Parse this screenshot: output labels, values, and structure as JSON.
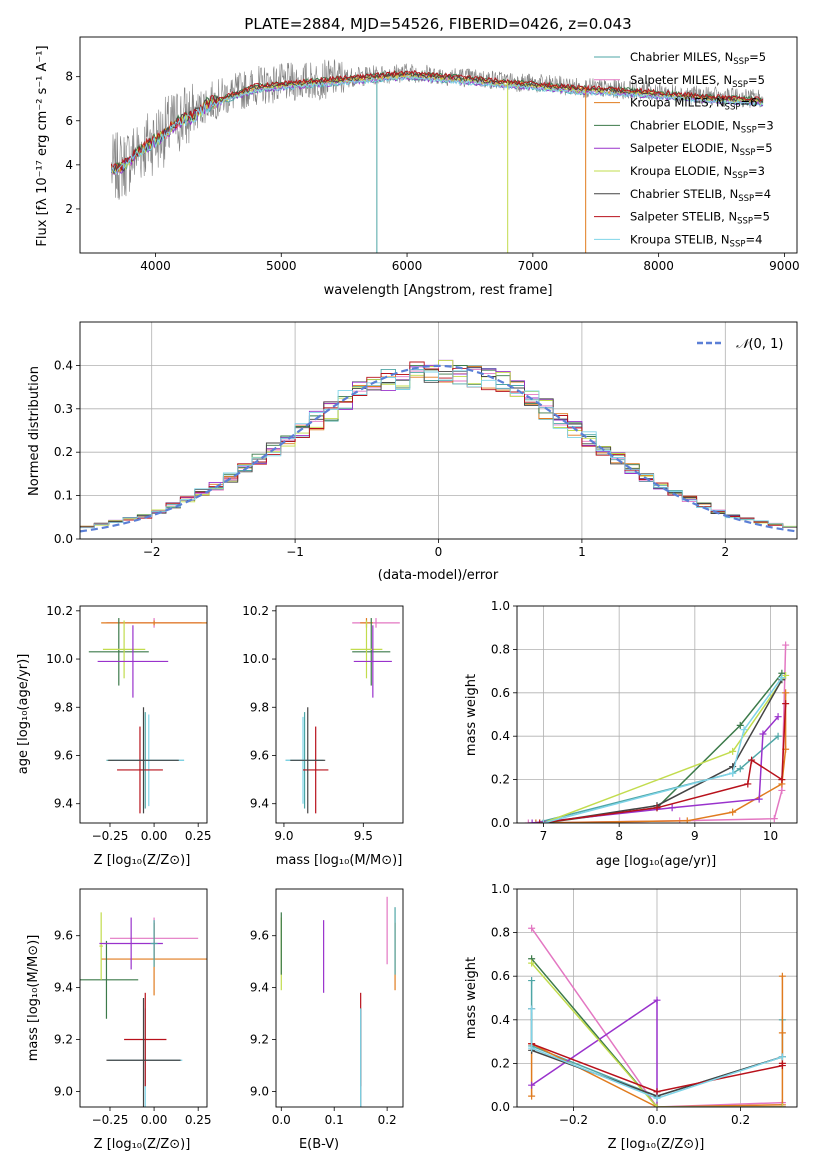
{
  "figure_title": "PLATE=2884, MJD=54526, FIBERID=0426, z=0.043",
  "model_colors": [
    "#4ea6a6",
    "#e377c2",
    "#e07b1e",
    "#3c7a4a",
    "#9932cc",
    "#c2dc4d",
    "#444444",
    "#b8111b",
    "#7fd4e8"
  ],
  "chart_data": [
    {
      "id": "spectrum",
      "type": "line",
      "xlabel": "wavelength [Angstrom, rest frame]",
      "ylabel": "Flux [fλ 10⁻¹⁷ erg cm⁻² s⁻¹ A⁻¹]",
      "xlim": [
        3400,
        9100
      ],
      "ylim": [
        0,
        9.8
      ],
      "xticks": [
        4000,
        5000,
        6000,
        7000,
        8000,
        9000
      ],
      "yticks": [
        2,
        4,
        6,
        8
      ],
      "legend_position": "right",
      "data_color": "#808080",
      "continuum_points": [
        [
          3650,
          3.8
        ],
        [
          3750,
          4.0
        ],
        [
          3850,
          4.6
        ],
        [
          4000,
          5.2
        ],
        [
          4100,
          5.6
        ],
        [
          4200,
          6.1
        ],
        [
          4300,
          6.3
        ],
        [
          4400,
          6.8
        ],
        [
          4600,
          7.2
        ],
        [
          4800,
          7.6
        ],
        [
          5000,
          7.7
        ],
        [
          5200,
          7.8
        ],
        [
          5400,
          7.9
        ],
        [
          5600,
          8.0
        ],
        [
          5800,
          8.1
        ],
        [
          6000,
          8.2
        ],
        [
          6200,
          8.1
        ],
        [
          6400,
          8.0
        ],
        [
          6600,
          7.9
        ],
        [
          6800,
          7.8
        ],
        [
          7000,
          7.7
        ],
        [
          7200,
          7.6
        ],
        [
          7400,
          7.5
        ],
        [
          7600,
          7.45
        ],
        [
          7800,
          7.4
        ],
        [
          8000,
          7.3
        ],
        [
          8200,
          7.2
        ],
        [
          8400,
          7.1
        ],
        [
          8600,
          7.05
        ],
        [
          8800,
          7.0
        ],
        [
          8830,
          6.9
        ]
      ],
      "legend": [
        {
          "main": "Chabrier MILES, N",
          "sub": "SSP",
          "tail": "=5"
        },
        {
          "main": "Salpeter MILES, N",
          "sub": "SSP",
          "tail": "=5"
        },
        {
          "main": "Kroupa MILES, N",
          "sub": "SSP",
          "tail": "=6"
        },
        {
          "main": "Chabrier ELODIE, N",
          "sub": "SSP",
          "tail": "=3"
        },
        {
          "main": "Salpeter ELODIE, N",
          "sub": "SSP",
          "tail": "=5"
        },
        {
          "main": "Kroupa ELODIE, N",
          "sub": "SSP",
          "tail": "=3"
        },
        {
          "main": "Chabrier STELIB, N",
          "sub": "SSP",
          "tail": "=4"
        },
        {
          "main": "Salpeter STELIB, N",
          "sub": "SSP",
          "tail": "=5"
        },
        {
          "main": "Kroupa STELIB, N",
          "sub": "SSP",
          "tail": "=4"
        }
      ]
    },
    {
      "id": "residuals",
      "type": "line",
      "xlabel": "(data-model)/error",
      "ylabel": "Normed distribution",
      "xlim": [
        -2.5,
        2.5
      ],
      "ylim": [
        0,
        0.5
      ],
      "xticks": [
        -2,
        -1,
        0,
        1,
        2
      ],
      "xtick_labels": [
        "−2",
        "−1",
        "0",
        "1",
        "2"
      ],
      "yticks": [
        0.0,
        0.1,
        0.2,
        0.3,
        0.4
      ],
      "ytick_labels": [
        "0.0",
        "0.1",
        "0.2",
        "0.3",
        "0.4"
      ],
      "grid": true,
      "legend_position": "top-right",
      "reference_curve": {
        "name": "N(0, 1)",
        "type": "gaussian",
        "mean": 0,
        "sigma": 1,
        "color": "#5b7fd6"
      },
      "histogram_bin_width": 0.1,
      "histogram_envelope": [
        [
          -2.5,
          0.025
        ],
        [
          -2.0,
          0.055
        ],
        [
          -1.5,
          0.13
        ],
        [
          -1.0,
          0.24
        ],
        [
          -0.5,
          0.35
        ],
        [
          0.0,
          0.39
        ],
        [
          0.5,
          0.36
        ],
        [
          1.0,
          0.24
        ],
        [
          1.5,
          0.13
        ],
        [
          2.0,
          0.055
        ],
        [
          2.5,
          0.025
        ]
      ]
    },
    {
      "id": "age_vs_Z",
      "type": "scatter",
      "xlabel": "Z [log₁₀(Z/Z⊙)]",
      "ylabel": "age  [log₁₀(age/yr)]",
      "xlim": [
        -0.42,
        0.3
      ],
      "ylim": [
        9.32,
        10.22
      ],
      "xticks": [
        -0.25,
        0.0,
        0.25
      ],
      "xtick_labels": [
        "−0.25",
        "0.00",
        "0.25"
      ],
      "yticks": [
        9.4,
        9.6,
        9.8,
        10.0,
        10.2
      ],
      "ytick_labels": [
        "9.4",
        "9.6",
        "9.8",
        "10.0",
        "10.2"
      ],
      "errorbars": [
        {
          "model": 1,
          "x": 0.0,
          "y": 10.15,
          "xerr": 0.27,
          "yerr": 0.02
        },
        {
          "model": 2,
          "x": 0.0,
          "y": 10.15,
          "xerr": 0.3,
          "yerr": 0.01
        },
        {
          "model": 3,
          "x": -0.2,
          "y": 10.03,
          "xerr": 0.17,
          "yerr": 0.14
        },
        {
          "model": 5,
          "x": -0.17,
          "y": 10.04,
          "xerr": 0.12,
          "yerr": 0.12
        },
        {
          "model": 4,
          "x": -0.12,
          "y": 9.99,
          "xerr": 0.2,
          "yerr": 0.15
        },
        {
          "model": 0,
          "x": -0.05,
          "y": 9.58,
          "xerr": 0.22,
          "yerr": 0.2
        },
        {
          "model": 8,
          "x": -0.03,
          "y": 9.58,
          "xerr": 0.2,
          "yerr": 0.19
        },
        {
          "model": 7,
          "x": -0.08,
          "y": 9.54,
          "xerr": 0.13,
          "yerr": 0.18
        },
        {
          "model": 6,
          "x": -0.06,
          "y": 9.58,
          "xerr": 0.2,
          "yerr": 0.22
        }
      ]
    },
    {
      "id": "age_vs_mass",
      "type": "scatter",
      "xlabel": "mass [log₁₀(M/M⊙)]",
      "xlim": [
        8.95,
        9.75
      ],
      "ylim": [
        9.32,
        10.22
      ],
      "xticks": [
        9.0,
        9.5
      ],
      "xtick_labels": [
        "9.0",
        "9.5"
      ],
      "yticks": [
        9.4,
        9.6,
        9.8,
        10.0,
        10.2
      ],
      "ytick_labels": [
        "9.4",
        "9.6",
        "9.8",
        "10.0",
        "10.2"
      ],
      "errorbars": [
        {
          "model": 1,
          "x": 9.58,
          "y": 10.15,
          "xerr": 0.15,
          "yerr": 0.02
        },
        {
          "model": 2,
          "x": 9.52,
          "y": 10.15,
          "xerr": 0.04,
          "yerr": 0.02
        },
        {
          "model": 3,
          "x": 9.55,
          "y": 10.03,
          "xerr": 0.12,
          "yerr": 0.14
        },
        {
          "model": 5,
          "x": 9.52,
          "y": 10.04,
          "xerr": 0.1,
          "yerr": 0.12
        },
        {
          "model": 4,
          "x": 9.56,
          "y": 9.99,
          "xerr": 0.12,
          "yerr": 0.15
        },
        {
          "model": 0,
          "x": 9.13,
          "y": 9.58,
          "xerr": 0.12,
          "yerr": 0.2
        },
        {
          "model": 8,
          "x": 9.12,
          "y": 9.58,
          "xerr": 0.11,
          "yerr": 0.18
        },
        {
          "model": 7,
          "x": 9.2,
          "y": 9.54,
          "xerr": 0.08,
          "yerr": 0.18
        },
        {
          "model": 6,
          "x": 9.15,
          "y": 9.58,
          "xerr": 0.11,
          "yerr": 0.22
        }
      ]
    },
    {
      "id": "weight_vs_age",
      "type": "line",
      "xlabel": "age  [log₁₀(age/yr)]",
      "ylabel": "mass weight",
      "xlim": [
        6.65,
        10.35
      ],
      "ylim": [
        0,
        1.0
      ],
      "xticks": [
        7,
        8,
        9,
        10
      ],
      "yticks": [
        0.0,
        0.2,
        0.4,
        0.6,
        0.8,
        1.0
      ],
      "ytick_labels": [
        "0.0",
        "0.2",
        "0.4",
        "0.6",
        "0.8",
        "1.0"
      ],
      "grid": true,
      "series": [
        {
          "model": 0,
          "x": [
            6.9,
            9.5,
            9.6,
            10.1
          ],
          "y": [
            0.0,
            0.23,
            0.25,
            0.4
          ]
        },
        {
          "model": 1,
          "x": [
            6.8,
            8.8,
            10.05,
            10.15,
            10.2
          ],
          "y": [
            0.0,
            0.01,
            0.02,
            0.15,
            0.82
          ]
        },
        {
          "model": 2,
          "x": [
            6.9,
            8.9,
            9.5,
            10.15,
            10.2,
            10.2
          ],
          "y": [
            0.0,
            0.01,
            0.05,
            0.18,
            0.34,
            0.6
          ]
        },
        {
          "model": 3,
          "x": [
            7.0,
            8.5,
            9.6,
            10.15
          ],
          "y": [
            0.0,
            0.07,
            0.45,
            0.69
          ]
        },
        {
          "model": 4,
          "x": [
            6.85,
            8.7,
            9.85,
            9.9,
            10.1
          ],
          "y": [
            0.0,
            0.07,
            0.11,
            0.41,
            0.49
          ]
        },
        {
          "model": 5,
          "x": [
            7.0,
            9.5,
            10.2
          ],
          "y": [
            0.0,
            0.33,
            0.68
          ]
        },
        {
          "model": 6,
          "x": [
            7.0,
            8.5,
            9.5,
            10.15
          ],
          "y": [
            0.0,
            0.08,
            0.26,
            0.66
          ]
        },
        {
          "model": 7,
          "x": [
            6.95,
            8.5,
            9.7,
            9.75,
            10.15,
            10.2
          ],
          "y": [
            0.0,
            0.07,
            0.18,
            0.29,
            0.2,
            0.55
          ]
        },
        {
          "model": 8,
          "x": [
            7.0,
            9.5,
            9.65,
            10.15
          ],
          "y": [
            0.0,
            0.23,
            0.43,
            0.67
          ]
        }
      ]
    },
    {
      "id": "mass_vs_Z",
      "type": "scatter",
      "xlabel": "Z [log₁₀(Z/Z⊙)]",
      "ylabel": "mass [log₁₀(M/M⊙)]",
      "xlim": [
        -0.42,
        0.3
      ],
      "ylim": [
        8.94,
        9.78
      ],
      "xticks": [
        -0.25,
        0.0,
        0.25
      ],
      "xtick_labels": [
        "−0.25",
        "0.00",
        "0.25"
      ],
      "yticks": [
        9.0,
        9.2,
        9.4,
        9.6
      ],
      "ytick_labels": [
        "9.0",
        "9.2",
        "9.4",
        "9.6"
      ],
      "errorbars": [
        {
          "model": 1,
          "x": 0.0,
          "y": 9.59,
          "xerr": 0.25,
          "yerr": 0.08
        },
        {
          "model": 2,
          "x": 0.0,
          "y": 9.51,
          "xerr": 0.3,
          "yerr": 0.14
        },
        {
          "model": 3,
          "x": -0.27,
          "y": 9.43,
          "xerr": 0.18,
          "yerr": 0.15
        },
        {
          "model": 5,
          "x": -0.3,
          "y": 9.56,
          "xerr": 0.01,
          "yerr": 0.13
        },
        {
          "model": 4,
          "x": -0.13,
          "y": 9.57,
          "xerr": 0.18,
          "yerr": 0.1
        },
        {
          "model": 0,
          "x": 0.0,
          "y": 9.57,
          "xerr": 0.02,
          "yerr": 0.09
        },
        {
          "model": 8,
          "x": -0.05,
          "y": 9.12,
          "xerr": 0.21,
          "yerr": 0.2
        },
        {
          "model": 7,
          "x": -0.05,
          "y": 9.2,
          "xerr": 0.12,
          "yerr": 0.18
        },
        {
          "model": 6,
          "x": -0.06,
          "y": 9.12,
          "xerr": 0.21,
          "yerr": 0.24
        }
      ]
    },
    {
      "id": "mass_vs_EBV",
      "type": "scatter",
      "xlabel": "E(B-V)",
      "xlim": [
        -0.01,
        0.23
      ],
      "ylim": [
        8.94,
        9.78
      ],
      "xticks": [
        0.0,
        0.1,
        0.2
      ],
      "xtick_labels": [
        "0.0",
        "0.1",
        "0.2"
      ],
      "yticks": [
        9.0,
        9.2,
        9.4,
        9.6
      ],
      "ytick_labels": [
        "9.0",
        "9.2",
        "9.4",
        "9.6"
      ],
      "errorbars": [
        {
          "model": 5,
          "x": 0.0,
          "y": 9.53,
          "xerr": 0,
          "yerr": 0.14
        },
        {
          "model": 3,
          "x": 0.0,
          "y": 9.57,
          "xerr": 0,
          "yerr": 0.12
        },
        {
          "model": 4,
          "x": 0.08,
          "y": 9.52,
          "xerr": 0,
          "yerr": 0.14
        },
        {
          "model": 7,
          "x": 0.15,
          "y": 9.2,
          "xerr": 0,
          "yerr": 0.18
        },
        {
          "model": 6,
          "x": 0.15,
          "y": 9.12,
          "xerr": 0,
          "yerr": 0.2
        },
        {
          "model": 8,
          "x": 0.15,
          "y": 9.12,
          "xerr": 0,
          "yerr": 0.2
        },
        {
          "model": 1,
          "x": 0.2,
          "y": 9.62,
          "xerr": 0,
          "yerr": 0.13
        },
        {
          "model": 2,
          "x": 0.215,
          "y": 9.52,
          "xerr": 0,
          "yerr": 0.13
        },
        {
          "model": 0,
          "x": 0.215,
          "y": 9.58,
          "xerr": 0,
          "yerr": 0.13
        }
      ]
    },
    {
      "id": "weight_vs_Z",
      "type": "line",
      "xlabel": "Z [log₁₀(Z/Z⊙)]",
      "ylabel": "mass weight",
      "xlim": [
        -0.335,
        0.335
      ],
      "ylim": [
        0,
        1.0
      ],
      "xticks": [
        -0.2,
        0.0,
        0.2
      ],
      "xtick_labels": [
        "−0.2",
        "0.0",
        "0.2"
      ],
      "yticks": [
        0.0,
        0.2,
        0.4,
        0.6,
        0.8,
        1.0
      ],
      "ytick_labels": [
        "0.0",
        "0.2",
        "0.4",
        "0.6",
        "0.8",
        "1.0"
      ],
      "grid": true,
      "series": [
        {
          "model": 0,
          "x": [
            -0.3,
            -0.3,
            0.0,
            0.3,
            0.3
          ],
          "y": [
            0.58,
            0.28,
            0.05,
            0.23,
            0.4
          ]
        },
        {
          "model": 1,
          "x": [
            -0.3,
            0.0,
            0.3,
            0.3
          ],
          "y": [
            0.82,
            0.0,
            0.02,
            0.0
          ]
        },
        {
          "model": 2,
          "x": [
            -0.3,
            -0.3,
            0.0,
            0.3,
            0.3,
            0.3
          ],
          "y": [
            0.05,
            0.29,
            0.0,
            0.01,
            0.34,
            0.6
          ]
        },
        {
          "model": 3,
          "x": [
            -0.3,
            0.0,
            0.3
          ],
          "y": [
            0.68,
            0.0,
            0.0
          ]
        },
        {
          "model": 4,
          "x": [
            -0.3,
            0.0,
            0.0,
            0.3
          ],
          "y": [
            0.1,
            0.49,
            0.0,
            0.0
          ]
        },
        {
          "model": 5,
          "x": [
            -0.3,
            0.0,
            0.3
          ],
          "y": [
            0.66,
            0.0,
            0.0
          ]
        },
        {
          "model": 6,
          "x": [
            -0.3,
            -0.3,
            0.0,
            0.3
          ],
          "y": [
            0.45,
            0.26,
            0.05,
            0.23
          ]
        },
        {
          "model": 7,
          "x": [
            -0.3,
            0.0,
            0.3,
            0.3
          ],
          "y": [
            0.29,
            0.07,
            0.19,
            0.2
          ]
        },
        {
          "model": 8,
          "x": [
            -0.3,
            -0.3,
            0.0,
            0.3
          ],
          "y": [
            0.45,
            0.27,
            0.04,
            0.23
          ]
        }
      ]
    }
  ]
}
